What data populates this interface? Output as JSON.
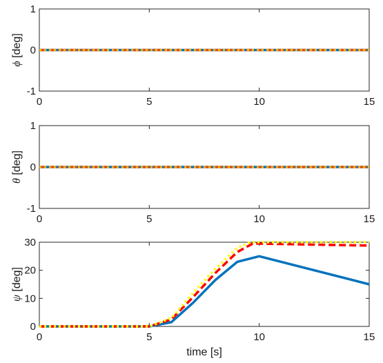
{
  "chart_data": [
    {
      "type": "line",
      "ylabel_symbol": "ϕ",
      "ylabel_unit": "[deg]",
      "xlim": [
        0,
        15
      ],
      "ylim": [
        -1,
        1
      ],
      "xticks": [
        "0",
        "5",
        "10",
        "15"
      ],
      "yticks": [
        "1",
        "0",
        "-1"
      ],
      "series": [
        {
          "x": [
            0,
            15
          ],
          "y": [
            0,
            0
          ],
          "color": "#0072BD",
          "style": "solid"
        },
        {
          "x": [
            0,
            15
          ],
          "y": [
            0,
            0
          ],
          "color": "#D95319",
          "style": "dashed"
        },
        {
          "x": [
            0,
            15
          ],
          "y": [
            0,
            0
          ],
          "color": "#EDB120",
          "style": "dotted"
        }
      ]
    },
    {
      "type": "line",
      "ylabel_symbol": "θ",
      "ylabel_unit": "[deg]",
      "xlim": [
        0,
        15
      ],
      "ylim": [
        -1,
        1
      ],
      "xticks": [
        "0",
        "5",
        "10",
        "15"
      ],
      "yticks": [
        "1",
        "0",
        "-1"
      ],
      "series": [
        {
          "x": [
            0,
            15
          ],
          "y": [
            0,
            0
          ],
          "color": "#0072BD",
          "style": "solid"
        },
        {
          "x": [
            0,
            15
          ],
          "y": [
            0,
            0
          ],
          "color": "#D95319",
          "style": "dashed"
        },
        {
          "x": [
            0,
            15
          ],
          "y": [
            0,
            0
          ],
          "color": "#EDB120",
          "style": "dotted"
        }
      ]
    },
    {
      "type": "line",
      "ylabel_symbol": "ψ",
      "ylabel_unit": "[deg]",
      "xlabel": "time [s]",
      "xlim": [
        0,
        15
      ],
      "ylim": [
        0,
        30
      ],
      "xticks": [
        "0",
        "5",
        "10",
        "15"
      ],
      "yticks": [
        "30",
        "20",
        "10",
        "0"
      ],
      "series": [
        {
          "x": [
            0,
            5,
            6,
            7,
            8,
            9,
            10,
            15
          ],
          "y": [
            0,
            0,
            1.5,
            8.5,
            16.5,
            23,
            25,
            15
          ],
          "color": "#0072BD",
          "style": "solid"
        },
        {
          "x": [
            0,
            5,
            6,
            7,
            8,
            9,
            9.7,
            10,
            15
          ],
          "y": [
            0,
            0,
            2.5,
            10.5,
            19,
            26.5,
            29.5,
            29.5,
            28.8
          ],
          "color": "#FF0000",
          "style": "dashed"
        },
        {
          "x": [
            0,
            5,
            6,
            7,
            8,
            9,
            9.6,
            10,
            15
          ],
          "y": [
            0,
            0,
            3,
            12,
            20.5,
            28,
            30,
            30,
            30
          ],
          "color": "#FFFF00",
          "style": "dotted"
        }
      ]
    }
  ]
}
